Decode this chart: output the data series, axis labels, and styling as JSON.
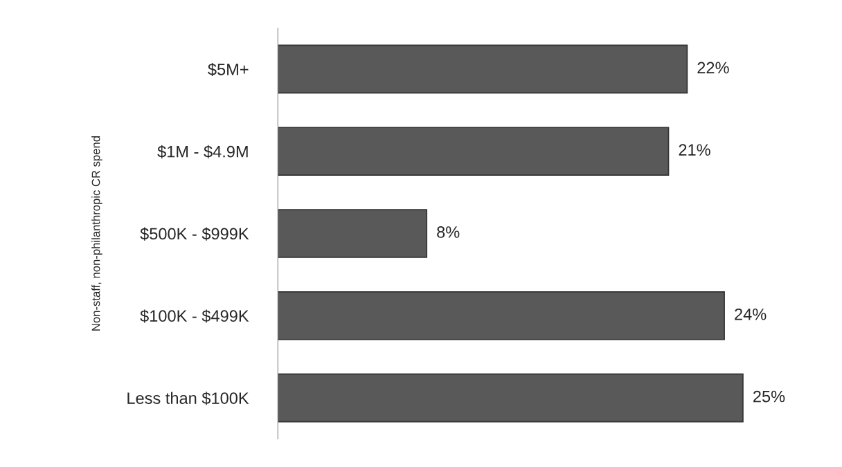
{
  "chart_data": {
    "type": "bar",
    "orientation": "horizontal",
    "ylabel": "Non-staff, non-philanthropic CR spend",
    "categories": [
      "$5M+",
      "$1M - $4.9M",
      "$500K - $999K",
      "$100K - $499K",
      "Less than $100K"
    ],
    "values": [
      22,
      21,
      8,
      24,
      25
    ],
    "value_labels": [
      "22%",
      "21%",
      "8%",
      "24%",
      "25%"
    ],
    "color": "#595959",
    "tick_labels": "y",
    "grid": false,
    "legend": false
  }
}
